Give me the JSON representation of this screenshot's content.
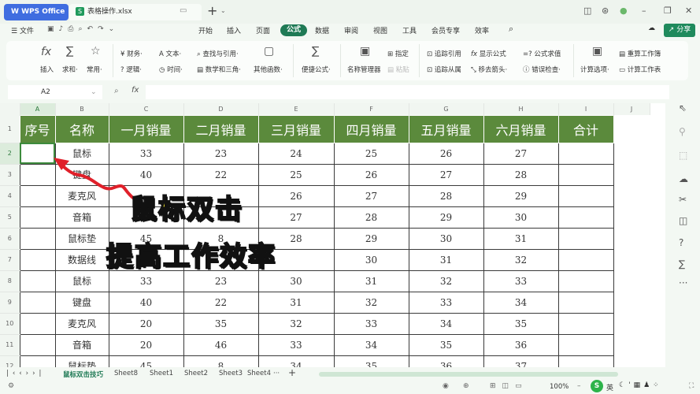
{
  "titlebar": {
    "app": "WPS Office",
    "file": "表格操作.xlsx",
    "file_icon": "S"
  },
  "menu": {
    "file": "文件",
    "tabs": [
      "开始",
      "插入",
      "页面",
      "公式",
      "数据",
      "审阅",
      "视图",
      "工具",
      "会员专享",
      "效率"
    ],
    "active": "公式",
    "share": "分享"
  },
  "ribbon": {
    "insert": "插入",
    "sum": "求和·",
    "common": "常用·",
    "finance": "财务·",
    "logic": "逻辑·",
    "text": "文本·",
    "time": "时间·",
    "lookup": "查找与引用·",
    "math": "数学和三角·",
    "other": "其他函数·",
    "quick": "便捷公式·",
    "name_mgr": "名称管理器",
    "assign": "指定",
    "paste": "粘贴",
    "trace_prec": "追踪引用",
    "trace_dep": "追踪从属",
    "show_formula": "显示公式",
    "remove_arrows": "移去箭头·",
    "eval": "公式求值",
    "error_check": "错误检查·",
    "calc_opts": "计算选项·",
    "recalc_book": "重算工作簿",
    "calc_sheet": "计算工作表"
  },
  "formula_bar": {
    "cell": "A2",
    "value": ""
  },
  "columns": [
    "A",
    "B",
    "C",
    "D",
    "E",
    "F",
    "G",
    "H",
    "I",
    "J"
  ],
  "headers": [
    "序号",
    "名称",
    "一月销量",
    "二月销量",
    "三月销量",
    "四月销量",
    "五月销量",
    "六月销量",
    "合计"
  ],
  "rows": [
    {
      "n": "2",
      "cells": [
        "",
        "鼠标",
        "33",
        "23",
        "24",
        "25",
        "26",
        "27",
        ""
      ]
    },
    {
      "n": "3",
      "cells": [
        "",
        "键盘",
        "40",
        "22",
        "25",
        "26",
        "27",
        "28",
        ""
      ]
    },
    {
      "n": "4",
      "cells": [
        "",
        "麦克风",
        "",
        "",
        "26",
        "27",
        "28",
        "29",
        ""
      ]
    },
    {
      "n": "5",
      "cells": [
        "",
        "音箱",
        "",
        "",
        "27",
        "28",
        "29",
        "30",
        ""
      ]
    },
    {
      "n": "6",
      "cells": [
        "",
        "鼠标垫",
        "45",
        "8",
        "28",
        "29",
        "30",
        "31",
        ""
      ]
    },
    {
      "n": "7",
      "cells": [
        "",
        "数据线",
        "",
        "",
        "",
        "30",
        "31",
        "32",
        ""
      ]
    },
    {
      "n": "8",
      "cells": [
        "",
        "鼠标",
        "33",
        "23",
        "30",
        "31",
        "32",
        "33",
        ""
      ]
    },
    {
      "n": "9",
      "cells": [
        "",
        "键盘",
        "40",
        "22",
        "31",
        "32",
        "33",
        "34",
        ""
      ]
    },
    {
      "n": "10",
      "cells": [
        "",
        "麦克风",
        "20",
        "35",
        "32",
        "33",
        "34",
        "35",
        ""
      ]
    },
    {
      "n": "11",
      "cells": [
        "",
        "音箱",
        "20",
        "46",
        "33",
        "34",
        "35",
        "36",
        ""
      ]
    },
    {
      "n": "12",
      "cells": [
        "",
        "鼠标垫",
        "45",
        "8",
        "34",
        "35",
        "36",
        "37",
        ""
      ]
    }
  ],
  "overlay": {
    "line1": "鼠标双击",
    "line2": "提高工作效率"
  },
  "sheets": {
    "active": "鼠标双击技巧",
    "others": [
      "Sheet8",
      "Sheet1",
      "Sheet2",
      "Sheet3",
      "Sheet4"
    ],
    "more": "···",
    "add": "+"
  },
  "status": {
    "zoom": "100%",
    "ime": "英"
  },
  "colors": {
    "header_fill": "#5b8a3c",
    "accent": "#1f7a55",
    "overlay_text": "#ffef2a",
    "arrow": "#e0202a"
  }
}
